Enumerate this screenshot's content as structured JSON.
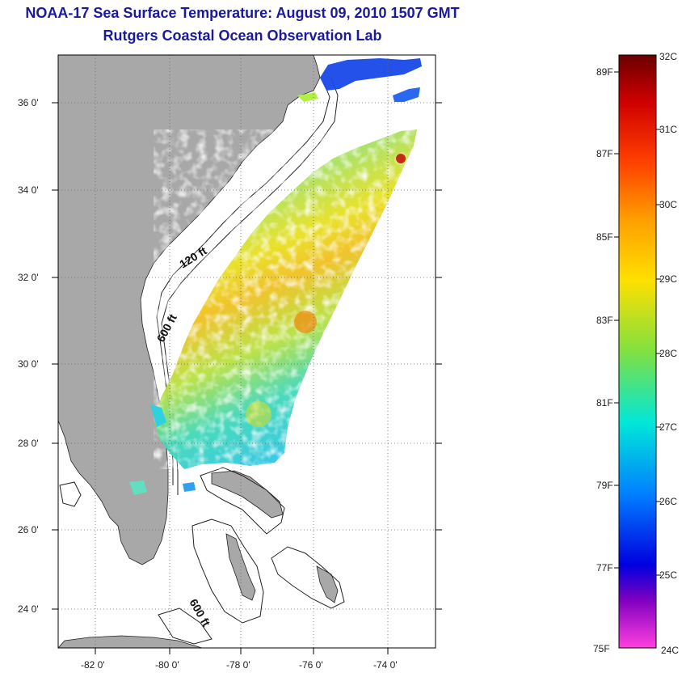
{
  "title": "NOAA-17 Sea Surface Temperature:  August 09, 2010 1507 GMT",
  "subtitle": "Rutgers Coastal Ocean Observation Lab",
  "map": {
    "lat_labels": [
      "36 0'",
      "34 0'",
      "32 0'",
      "30 0'",
      "28 0'",
      "26 0'",
      "24 0'"
    ],
    "lon_labels": [
      "-82 0'",
      "-80 0'",
      "-78 0'",
      "-76 0'",
      "-74 0'"
    ],
    "contour_labels": [
      "120 ft",
      "600 ft",
      "600 ft"
    ]
  },
  "colorbar": {
    "fahrenheit": [
      "89F",
      "87F",
      "85F",
      "83F",
      "81F",
      "79F",
      "77F",
      "75F"
    ],
    "celsius": [
      "32C",
      "31C",
      "30C",
      "29C",
      "28C",
      "27C",
      "26C",
      "25C",
      "24C"
    ]
  },
  "colors": {
    "title": "#1a1a9a",
    "land": "#a8a8a8",
    "ocean": "#ffffff"
  }
}
